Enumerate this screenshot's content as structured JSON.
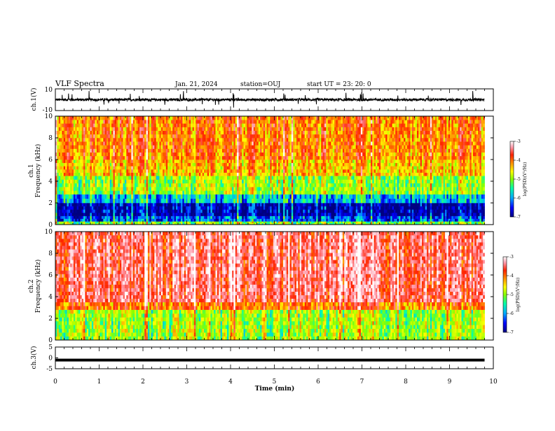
{
  "header": {
    "title": "VLF Spectra",
    "date": "Jan. 21, 2024",
    "station": "station=OUJ",
    "start": "start UT =  23: 20: 0"
  },
  "colorbar": {
    "ticks": [
      "-3",
      "-4",
      "-5",
      "-6",
      "-7"
    ],
    "label": "log(PSD)(V²/Hz)",
    "colors": [
      "#000080",
      "#0000ff",
      "#00aaff",
      "#00ffaa",
      "#88ff00",
      "#ffff00",
      "#ff8800",
      "#ff2200",
      "#ff99aa",
      "#ffffff"
    ]
  },
  "chart_data": [
    {
      "type": "line",
      "ylabel": "ch.1(V)",
      "ylim": [
        -10,
        10
      ],
      "yticks": [
        "10",
        "-10"
      ],
      "description_values": "baseline around 0 V with short spikes up to about +8 V and down to about -7 V",
      "series": [
        {
          "values_baseline": 0
        }
      ]
    },
    {
      "type": "heatmap",
      "ylabel": "ch.1\nFrequency (kHz)",
      "ylim": [
        0,
        10
      ],
      "yticks": [
        "0",
        "2",
        "4",
        "6",
        "8",
        "10"
      ],
      "zlim": [
        -7,
        -3
      ],
      "bands": [
        {
          "from": 0,
          "to": 0.3,
          "level": -5.3
        },
        {
          "from": 0.3,
          "to": 0.8,
          "level": -6.4
        },
        {
          "from": 0.8,
          "to": 2.0,
          "level": -6.9
        },
        {
          "from": 2.0,
          "to": 2.8,
          "level": -6.0
        },
        {
          "from": 2.8,
          "to": 4.5,
          "level": -5.2
        },
        {
          "from": 4.5,
          "to": 6.0,
          "level": -4.6
        },
        {
          "from": 6.0,
          "to": 10.0,
          "level": -4.3
        }
      ]
    },
    {
      "type": "heatmap",
      "ylabel": "ch.2\nFrequency (kHz)",
      "ylim": [
        0,
        10
      ],
      "yticks": [
        "0",
        "2",
        "4",
        "6",
        "8",
        "10"
      ],
      "zlim": [
        -7,
        -3
      ],
      "bands": [
        {
          "from": 0,
          "to": 2.8,
          "level": -5.2
        },
        {
          "from": 2.8,
          "to": 3.5,
          "level": -4.3
        },
        {
          "from": 3.5,
          "to": 10.0,
          "level": -3.7
        }
      ]
    },
    {
      "type": "line",
      "ylabel": "ch.3(V)",
      "ylim": [
        -5,
        5
      ],
      "yticks": [
        "5",
        "0",
        "-5"
      ],
      "series": [
        {
          "values_constant": -1
        }
      ]
    }
  ],
  "xaxis": {
    "label": "Time (min)",
    "range": [
      0,
      10
    ],
    "ticks": [
      "0",
      "1",
      "2",
      "3",
      "4",
      "5",
      "6",
      "7",
      "8",
      "9",
      "10"
    ],
    "data_end": 9.8
  }
}
